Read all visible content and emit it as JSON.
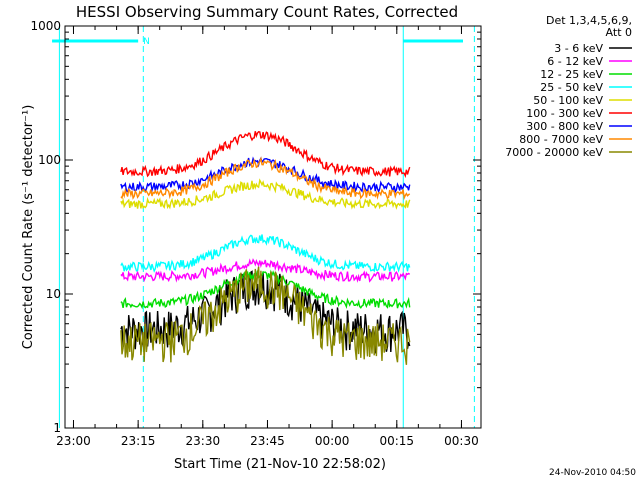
{
  "chart_data": {
    "type": "line",
    "title": "HESSI Observing Summary Count Rates, Corrected",
    "xlabel": "Start Time (21-Nov-10 22:58:02)",
    "ylabel": "Corrected Count Rate (s⁻¹ detector⁻¹)",
    "yscale": "log",
    "ylim": [
      1,
      1000
    ],
    "xlim": [
      "22:58:02",
      "23:38:02 +60min"
    ],
    "x_tick_labels": [
      "23:00",
      "23:15",
      "23:30",
      "23:45",
      "00:00",
      "00:15",
      "00:30"
    ],
    "y_tick_labels": [
      "1",
      "10",
      "100",
      "1000"
    ],
    "legend_header": [
      "Det 1,3,4,5,6,9,",
      "Att 0"
    ],
    "legend_position": "top-right outside plot",
    "footer_timestamp": "24-Nov-2010 04:50",
    "attenuator_marker": "N",
    "data_start": "23:11",
    "data_end": "00:18",
    "series": [
      {
        "name": "3 - 6 keV",
        "color": "#000000",
        "baseline": 5.5,
        "peak": 12
      },
      {
        "name": "6 - 12 keV",
        "color": "#ff00ff",
        "baseline": 13.5,
        "peak": 17
      },
      {
        "name": "12 - 25 keV",
        "color": "#00dd00",
        "baseline": 8.5,
        "peak": 14
      },
      {
        "name": "25 - 50 keV",
        "color": "#00ffff",
        "baseline": 16,
        "peak": 26
      },
      {
        "name": "50 - 100 keV",
        "color": "#dddd00",
        "baseline": 47,
        "peak": 66
      },
      {
        "name": "100 - 300 keV",
        "color": "#ff0000",
        "baseline": 82,
        "peak": 155
      },
      {
        "name": "300 - 800 keV",
        "color": "#0000ff",
        "baseline": 63,
        "peak": 98
      },
      {
        "name": "800 - 7000 keV",
        "color": "#ff8800",
        "baseline": 56,
        "peak": 95
      },
      {
        "name": "7000 - 20000 keV",
        "color": "#888800",
        "baseline": 4.5,
        "peak": 12
      }
    ]
  }
}
